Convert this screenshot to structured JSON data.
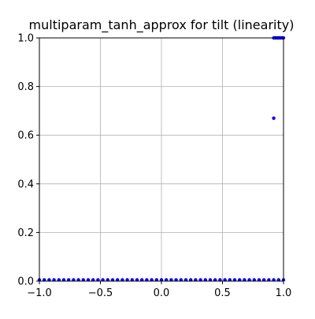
{
  "chart_data": {
    "type": "scatter",
    "title": "multiparam_tanh_approx for tilt (linearity)",
    "xlabel": "",
    "ylabel": "",
    "xlim": [
      -1.0,
      1.0
    ],
    "ylim": [
      0.0,
      1.0
    ],
    "x_ticks": [
      "−1.0",
      "−0.5",
      "0.0",
      "0.5",
      "1.0"
    ],
    "x_tick_values": [
      -1.0,
      -0.5,
      0.0,
      0.5,
      1.0
    ],
    "y_ticks": [
      "0.0",
      "0.2",
      "0.4",
      "0.6",
      "0.8",
      "1.0"
    ],
    "y_tick_values": [
      0.0,
      0.2,
      0.4,
      0.6,
      0.8,
      1.0
    ],
    "grid": true,
    "marker_color": "#0000ff",
    "series": [
      {
        "points": [
          [
            -1.0,
            0.005
          ],
          [
            -0.96,
            0.005
          ],
          [
            -0.92,
            0.005
          ],
          [
            -0.88,
            0.005
          ],
          [
            -0.84,
            0.005
          ],
          [
            -0.8,
            0.005
          ],
          [
            -0.76,
            0.005
          ],
          [
            -0.72,
            0.005
          ],
          [
            -0.68,
            0.005
          ],
          [
            -0.64,
            0.005
          ],
          [
            -0.6,
            0.005
          ],
          [
            -0.56,
            0.005
          ],
          [
            -0.52,
            0.005
          ],
          [
            -0.48,
            0.005
          ],
          [
            -0.44,
            0.005
          ],
          [
            -0.4,
            0.005
          ],
          [
            -0.36,
            0.005
          ],
          [
            -0.32,
            0.005
          ],
          [
            -0.28,
            0.005
          ],
          [
            -0.24,
            0.005
          ],
          [
            -0.2,
            0.005
          ],
          [
            -0.16,
            0.005
          ],
          [
            -0.12,
            0.005
          ],
          [
            -0.08,
            0.005
          ],
          [
            -0.04,
            0.005
          ],
          [
            0.0,
            0.005
          ],
          [
            0.04,
            0.005
          ],
          [
            0.08,
            0.005
          ],
          [
            0.12,
            0.005
          ],
          [
            0.16,
            0.005
          ],
          [
            0.2,
            0.005
          ],
          [
            0.24,
            0.005
          ],
          [
            0.28,
            0.005
          ],
          [
            0.32,
            0.005
          ],
          [
            0.36,
            0.005
          ],
          [
            0.4,
            0.005
          ],
          [
            0.44,
            0.005
          ],
          [
            0.48,
            0.005
          ],
          [
            0.52,
            0.005
          ],
          [
            0.56,
            0.005
          ],
          [
            0.6,
            0.005
          ],
          [
            0.64,
            0.005
          ],
          [
            0.68,
            0.005
          ],
          [
            0.72,
            0.005
          ],
          [
            0.76,
            0.005
          ],
          [
            0.8,
            0.005
          ],
          [
            0.84,
            0.005
          ],
          [
            0.88,
            0.005
          ],
          [
            0.92,
            0.005
          ],
          [
            0.96,
            0.005
          ],
          [
            1.0,
            0.005
          ],
          [
            0.92,
            0.67
          ],
          [
            0.92,
            1.0
          ],
          [
            0.93,
            1.0
          ],
          [
            0.94,
            1.0
          ],
          [
            0.95,
            1.0
          ],
          [
            0.96,
            1.0
          ],
          [
            0.97,
            1.0
          ],
          [
            0.98,
            1.0
          ],
          [
            0.99,
            1.0
          ],
          [
            1.0,
            1.0
          ]
        ]
      }
    ]
  }
}
